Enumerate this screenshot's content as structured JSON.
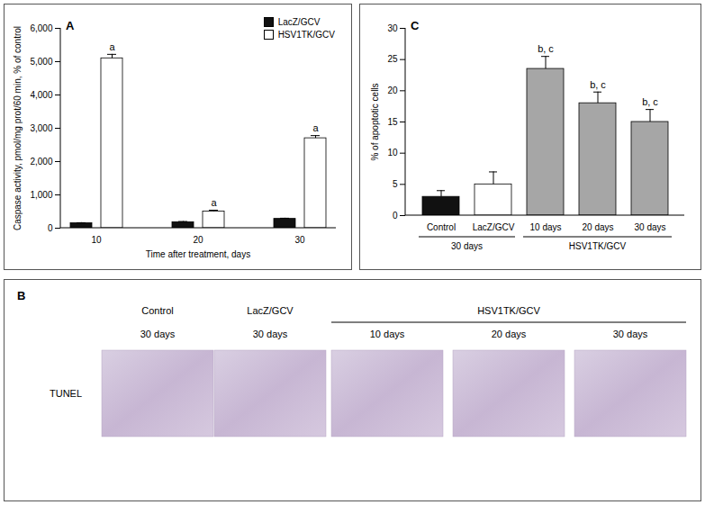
{
  "chart_data": [
    {
      "type": "bar",
      "title": "A",
      "x_label": "Time after treatment, days",
      "y_label": "Caspase activity, pmol/mg prot/60 min, % of control",
      "categories": [
        10,
        20,
        30
      ],
      "series": [
        {
          "name": "LacZ/GCV",
          "color": "#111111",
          "values": [
            150,
            180,
            280
          ],
          "errors": [
            15,
            20,
            20
          ],
          "annotations": [
            null,
            null,
            null
          ]
        },
        {
          "name": "HSV1TK/GCV",
          "color": "#ffffff",
          "values": [
            5100,
            500,
            2700
          ],
          "errors": [
            120,
            40,
            80
          ],
          "annotations": [
            "a",
            "a",
            "a"
          ]
        }
      ],
      "ylim": [
        0,
        6000
      ],
      "yticks": [
        0,
        {
          "value": 1000,
          "label": "1,000"
        },
        {
          "value": 2000,
          "label": "2,000"
        },
        {
          "value": 3000,
          "label": "3,000"
        },
        {
          "value": 4000,
          "label": "4,000"
        },
        {
          "value": 5000,
          "label": "5,000"
        },
        {
          "value": 6000,
          "label": "6,000"
        }
      ],
      "legend": "top-right",
      "grid": false
    },
    {
      "type": "bar",
      "title": "C",
      "y_label": "% of apoptotic cells",
      "categories": [
        "Control",
        "LacZ/GCV",
        "10 days",
        "20 days",
        "30 days"
      ],
      "values": [
        3,
        5,
        23.5,
        18,
        15
      ],
      "errors": [
        1,
        2,
        2,
        1.8,
        2
      ],
      "colors": [
        "#111111",
        "#ffffff",
        "#a6a6a6",
        "#a6a6a6",
        "#a6a6a6"
      ],
      "annotations": [
        null,
        null,
        "b, c",
        "b, c",
        "b, c"
      ],
      "groups": [
        {
          "label": "30 days",
          "categories": [
            "Control",
            "LacZ/GCV"
          ]
        },
        {
          "label": "HSV1TK/GCV",
          "categories": [
            "10 days",
            "20 days",
            "30 days"
          ]
        }
      ],
      "ylim": [
        0,
        30
      ],
      "yticks": [
        0,
        5,
        10,
        15,
        20,
        25,
        30
      ],
      "grid": false
    }
  ],
  "image_panel": {
    "title": "B",
    "row_label": "TUNEL",
    "columns": [
      {
        "label": "Control",
        "sublabel": "30 days"
      },
      {
        "label": "LacZ/GCV",
        "sublabel": "30 days"
      },
      {
        "sublabel": "10 days"
      },
      {
        "sublabel": "20 days"
      },
      {
        "sublabel": "30 days"
      }
    ],
    "group": {
      "label": "HSV1TK/GCV",
      "columns": [
        2,
        3,
        4
      ]
    }
  }
}
